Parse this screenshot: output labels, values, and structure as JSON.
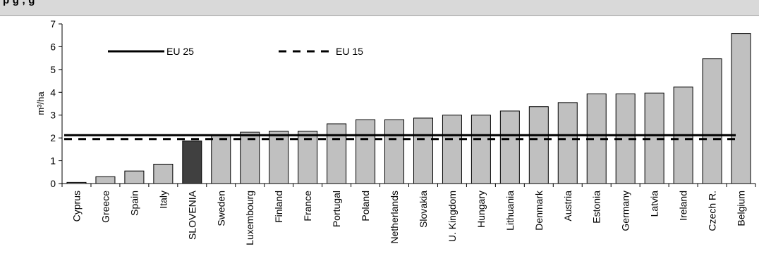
{
  "header": {
    "title": "p                                                          g      ,        g"
  },
  "chart_data": {
    "type": "bar",
    "title": "",
    "ylabel": "m³/ha",
    "xlabel": "",
    "ylim": [
      0,
      7
    ],
    "yticks": [
      0,
      1,
      2,
      3,
      4,
      5,
      6,
      7
    ],
    "grid": false,
    "legend": "top-left, inside plot",
    "categories": [
      "Cyprus",
      "Greece",
      "Spain",
      "Italy",
      "SLOVENIA",
      "Sweden",
      "Luxembourg",
      "Finland",
      "France",
      "Portugal",
      "Poland",
      "Netherlands",
      "Slovakia",
      "U. Kingdom",
      "Hungary",
      "Lithuania",
      "Denmark",
      "Austria",
      "Estonia",
      "Germany",
      "Latvia",
      "Ireland",
      "Czech R.",
      "Belgium"
    ],
    "values": [
      0.05,
      0.3,
      0.55,
      0.85,
      1.87,
      2.1,
      2.25,
      2.3,
      2.3,
      2.62,
      2.8,
      2.8,
      2.87,
      3.0,
      3.0,
      3.18,
      3.37,
      3.55,
      3.93,
      3.93,
      3.97,
      4.23,
      5.47,
      6.58
    ],
    "highlight": {
      "category": "SLOVENIA",
      "color": "#404040"
    },
    "bar_color": "#c0c0c0",
    "reference_lines": [
      {
        "name": "EU 25",
        "value": 2.12,
        "style": "solid"
      },
      {
        "name": "EU 15",
        "value": 1.95,
        "style": "dashed"
      }
    ]
  }
}
